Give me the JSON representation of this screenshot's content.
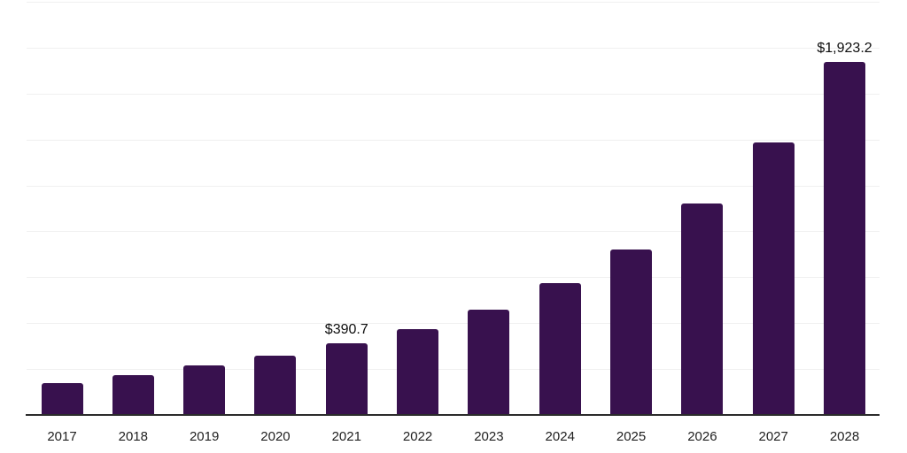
{
  "page": {
    "background_color": "#ffffff"
  },
  "chart_data": {
    "type": "bar",
    "title": "",
    "xlabel": "",
    "ylabel": "",
    "categories": [
      "2017",
      "2018",
      "2019",
      "2020",
      "2021",
      "2022",
      "2023",
      "2024",
      "2025",
      "2026",
      "2027",
      "2028"
    ],
    "values": [
      175,
      217,
      270,
      325,
      390.7,
      467,
      575,
      719,
      899,
      1150,
      1483,
      1923.2
    ],
    "data_labels": [
      "",
      "",
      "",
      "",
      "$390.7",
      "",
      "",
      "",
      "",
      "",
      "",
      "$1,923.2"
    ],
    "ylim": [
      0,
      2250
    ],
    "gridline_step": 250,
    "grid": "horizontal",
    "legend": "none",
    "y_axis_tick_labels": "none",
    "colors": {
      "bar": "#38114e",
      "axis_line": "#2b2b2b",
      "gridline": "#f0f0f0",
      "tick_label": "#212121",
      "data_label": "#0d0d0d"
    }
  }
}
